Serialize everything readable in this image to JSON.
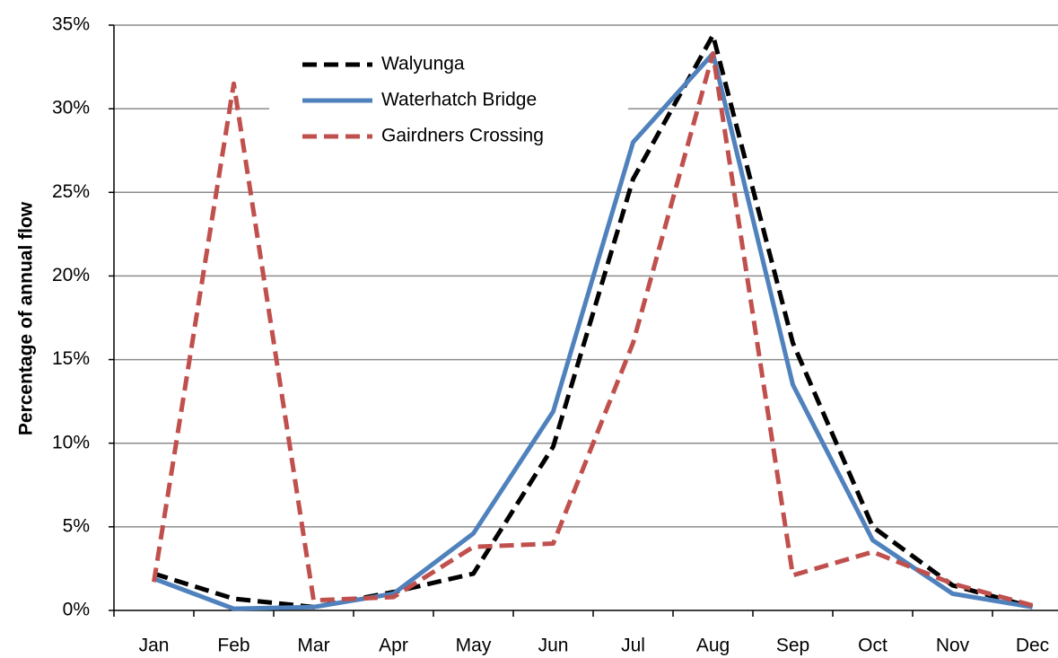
{
  "chart_data": {
    "type": "line",
    "y_label": "Percentage of annual flow",
    "categories": [
      "Jan",
      "Feb",
      "Mar",
      "Apr",
      "May",
      "Jun",
      "Jul",
      "Aug",
      "Sep",
      "Oct",
      "Nov",
      "Dec"
    ],
    "series": [
      {
        "name": "Walyunga",
        "color": "#000000",
        "dashed": true,
        "values": [
          2.2,
          0.7,
          0.2,
          1.1,
          2.2,
          9.8,
          25.8,
          34.4,
          16,
          5,
          1.5,
          0.2
        ]
      },
      {
        "name": "Waterhatch Bridge",
        "color": "#4f81bd",
        "dashed": false,
        "values": [
          1.9,
          0.1,
          0.2,
          1.0,
          4.6,
          11.9,
          28,
          33.3,
          13.5,
          4.2,
          1.0,
          0.2
        ]
      },
      {
        "name": "Gairdners Crossing",
        "color": "#c0504d",
        "dashed": true,
        "values": [
          1.7,
          31.5,
          0.6,
          0.8,
          3.8,
          4.0,
          16,
          33.3,
          2.1,
          3.5,
          1.6,
          0.3
        ]
      }
    ],
    "ylim": [
      0,
      35
    ],
    "yticks": [
      {
        "value": 0,
        "label": "0%"
      },
      {
        "value": 5,
        "label": "5%"
      },
      {
        "value": 10,
        "label": "10%"
      },
      {
        "value": 15,
        "label": "15%"
      },
      {
        "value": 20,
        "label": "20%"
      },
      {
        "value": 25,
        "label": "25%"
      },
      {
        "value": 30,
        "label": "30%"
      },
      {
        "value": 35,
        "label": "35%"
      }
    ],
    "grid": true,
    "legend": "top"
  }
}
